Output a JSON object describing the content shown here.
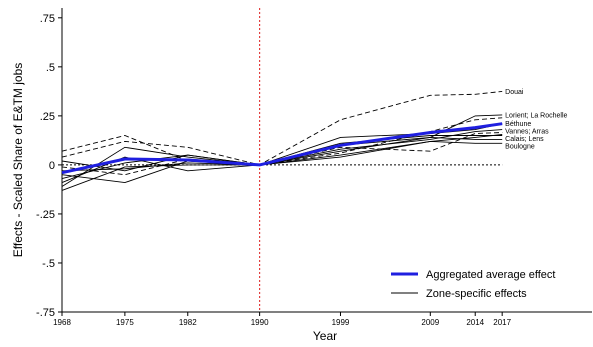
{
  "chart_data": {
    "type": "line",
    "xlabel": "Year",
    "ylabel": "Effects - Scaled Share of E&TM jobs",
    "x_ticks": [
      1968,
      1975,
      1982,
      1990,
      1999,
      2009,
      2014,
      2017
    ],
    "y_ticks": [
      ".75",
      ".5",
      ".25",
      "0",
      "-.25",
      "-.5",
      "-.75"
    ],
    "y_tick_values": [
      0.75,
      0.5,
      0.25,
      0,
      -0.25,
      -0.5,
      -0.75
    ],
    "xlim": [
      1968,
      2027
    ],
    "ylim": [
      -0.75,
      0.8
    ],
    "reference_year": 1990,
    "zero_line": true,
    "grid": false,
    "legend_position": "bottom-right",
    "aggregated": {
      "name": "Aggregated average effect",
      "color": "#1f1fe0",
      "x": [
        1968,
        1975,
        1982,
        1990,
        1999,
        2009,
        2014,
        2017
      ],
      "y": [
        -0.04,
        0.03,
        0.025,
        0.0,
        0.1,
        0.165,
        0.19,
        0.21
      ]
    },
    "zone_series_name": "Zone-specific effects",
    "zones": [
      {
        "label": "Douai",
        "dashed": true,
        "x": [
          1968,
          1975,
          1982,
          1990,
          1999,
          2009,
          2014,
          2017
        ],
        "y": [
          0.04,
          0.12,
          0.09,
          0.0,
          0.23,
          0.355,
          0.36,
          0.375
        ]
      },
      {
        "label": "Lorient; La Rochelle",
        "dashed": false,
        "x": [
          1968,
          1975,
          1982,
          1990,
          1999,
          2009,
          2014,
          2017
        ],
        "y": [
          -0.07,
          0.01,
          0.05,
          0.0,
          0.07,
          0.14,
          0.25,
          0.255
        ]
      },
      {
        "label": "",
        "dashed": true,
        "x": [
          1968,
          1975,
          1982,
          1990,
          1999,
          2009,
          2014,
          2017
        ],
        "y": [
          0.07,
          0.15,
          0.02,
          0.0,
          0.06,
          0.17,
          0.23,
          0.24
        ]
      },
      {
        "label": "Béthune",
        "dashed": false,
        "x": [
          1968,
          1975,
          1982,
          1990,
          1999,
          2009,
          2014,
          2017
        ],
        "y": [
          -0.11,
          0.09,
          0.04,
          0.0,
          0.14,
          0.16,
          0.18,
          0.21
        ]
      },
      {
        "label": "Vannes; Arras",
        "dashed": false,
        "x": [
          1968,
          1975,
          1982,
          1990,
          1999,
          2009,
          2014,
          2017
        ],
        "y": [
          -0.03,
          -0.02,
          0.01,
          0.0,
          0.08,
          0.13,
          0.17,
          0.18
        ]
      },
      {
        "label": "",
        "dashed": true,
        "x": [
          1968,
          1975,
          1982,
          1990,
          1999,
          2009,
          2014,
          2017
        ],
        "y": [
          -0.01,
          -0.05,
          0.03,
          0.0,
          0.09,
          0.07,
          0.16,
          0.165
        ]
      },
      {
        "label": "Calais; Lens",
        "dashed": false,
        "x": [
          1968,
          1975,
          1982,
          1990,
          1999,
          2009,
          2014,
          2017
        ],
        "y": [
          -0.13,
          -0.01,
          0.0,
          0.0,
          0.05,
          0.12,
          0.14,
          0.155
        ]
      },
      {
        "label": "",
        "dashed": false,
        "x": [
          1968,
          1975,
          1982,
          1990,
          1999,
          2009,
          2014,
          2017
        ],
        "y": [
          -0.05,
          -0.09,
          0.02,
          0.0,
          0.11,
          0.15,
          0.15,
          0.15
        ]
      },
      {
        "label": "Boulogne",
        "dashed": false,
        "x": [
          1968,
          1975,
          1982,
          1990,
          1999,
          2009,
          2014,
          2017
        ],
        "y": [
          -0.09,
          0.04,
          -0.03,
          0.0,
          0.04,
          0.12,
          0.11,
          0.11
        ]
      },
      {
        "label": "",
        "dashed": false,
        "x": [
          1968,
          1975,
          1982,
          1990,
          1999,
          2009,
          2014,
          2017
        ],
        "y": [
          0.02,
          -0.03,
          0.05,
          0.0,
          0.1,
          0.14,
          0.13,
          0.13
        ]
      }
    ],
    "legend": [
      {
        "label": "Aggregated average effect",
        "color": "#1f1fe0",
        "width": 3
      },
      {
        "label": "Zone-specific effects",
        "color": "#000000",
        "width": 1
      }
    ]
  }
}
